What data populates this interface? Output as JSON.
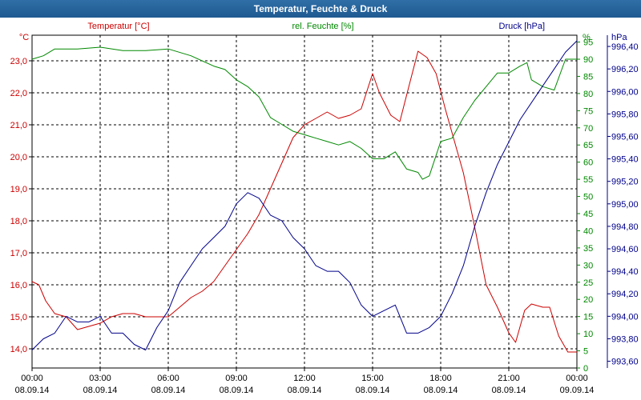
{
  "window": {
    "title": "Temperatur, Feuchte & Druck"
  },
  "chart_data": {
    "type": "line",
    "title": "Temperatur, Feuchte & Druck",
    "grid": true,
    "x": {
      "ticks": [
        {
          "time": "00:00",
          "date": "08.09.14"
        },
        {
          "time": "03:00",
          "date": "08.09.14"
        },
        {
          "time": "06:00",
          "date": "08.09.14"
        },
        {
          "time": "09:00",
          "date": "08.09.14"
        },
        {
          "time": "12:00",
          "date": "08.09.14"
        },
        {
          "time": "15:00",
          "date": "08.09.14"
        },
        {
          "time": "18:00",
          "date": "08.09.14"
        },
        {
          "time": "21:00",
          "date": "08.09.14"
        },
        {
          "time": "00:00",
          "date": "09.09.14"
        }
      ],
      "range_hours": [
        0,
        24
      ]
    },
    "axes": {
      "temperature": {
        "label": "Temperatur [°C]",
        "unit": "°C",
        "color": "#cc0000",
        "range": [
          13.4,
          23.8
        ],
        "ticks": [
          "14,0",
          "15,0",
          "16,0",
          "17,0",
          "18,0",
          "19,0",
          "20,0",
          "21,0",
          "22,0",
          "23,0"
        ]
      },
      "humidity": {
        "label": "rel. Feuchte [%]",
        "unit": "%",
        "color": "#008800",
        "range": [
          0,
          97
        ],
        "ticks": [
          "0",
          "5",
          "10",
          "15",
          "20",
          "25",
          "30",
          "35",
          "40",
          "45",
          "50",
          "55",
          "60",
          "65",
          "70",
          "75",
          "80",
          "85",
          "90",
          "95"
        ]
      },
      "pressure": {
        "label": "Druck [hPa]",
        "unit": "hPa",
        "color": "#00008b",
        "range": [
          993.54,
          996.5
        ],
        "ticks": [
          "993,60",
          "993,80",
          "994,00",
          "994,20",
          "994,40",
          "994,60",
          "994,80",
          "995,00",
          "995,20",
          "995,40",
          "995,60",
          "995,80",
          "996,00",
          "996,20",
          "996,40"
        ]
      }
    },
    "series": [
      {
        "name": "Temperatur [°C]",
        "axis": "temperature",
        "color": "#cc0000",
        "points": [
          [
            0,
            16.1
          ],
          [
            0.3,
            16.0
          ],
          [
            0.6,
            15.5
          ],
          [
            1,
            15.1
          ],
          [
            1.5,
            15.0
          ],
          [
            2,
            14.6
          ],
          [
            2.5,
            14.7
          ],
          [
            3,
            14.8
          ],
          [
            3.5,
            15.0
          ],
          [
            4,
            15.1
          ],
          [
            4.5,
            15.1
          ],
          [
            5,
            15.0
          ],
          [
            5.5,
            15.0
          ],
          [
            6,
            15.0
          ],
          [
            6.5,
            15.3
          ],
          [
            7,
            15.6
          ],
          [
            7.5,
            15.8
          ],
          [
            8,
            16.1
          ],
          [
            8.5,
            16.6
          ],
          [
            9,
            17.1
          ],
          [
            9.5,
            17.6
          ],
          [
            10,
            18.2
          ],
          [
            10.5,
            19.0
          ],
          [
            11,
            19.8
          ],
          [
            11.5,
            20.6
          ],
          [
            12,
            21.0
          ],
          [
            12.5,
            21.2
          ],
          [
            13,
            21.4
          ],
          [
            13.5,
            21.2
          ],
          [
            14,
            21.3
          ],
          [
            14.5,
            21.5
          ],
          [
            15,
            22.6
          ],
          [
            15.3,
            22.0
          ],
          [
            15.8,
            21.3
          ],
          [
            16.2,
            21.1
          ],
          [
            16.6,
            22.2
          ],
          [
            17,
            23.3
          ],
          [
            17.4,
            23.1
          ],
          [
            17.8,
            22.6
          ],
          [
            18.2,
            21.5
          ],
          [
            18.6,
            20.5
          ],
          [
            19,
            19.5
          ],
          [
            19.5,
            17.8
          ],
          [
            20,
            16.0
          ],
          [
            20.5,
            15.3
          ],
          [
            21,
            14.5
          ],
          [
            21.3,
            14.2
          ],
          [
            21.7,
            15.2
          ],
          [
            22,
            15.4
          ],
          [
            22.5,
            15.3
          ],
          [
            22.8,
            15.3
          ],
          [
            23.2,
            14.4
          ],
          [
            23.6,
            13.9
          ],
          [
            24,
            13.9
          ]
        ]
      },
      {
        "name": "rel. Feuchte [%]",
        "axis": "humidity",
        "color": "#008800",
        "points": [
          [
            0,
            90
          ],
          [
            0.5,
            91
          ],
          [
            1,
            93
          ],
          [
            2,
            93
          ],
          [
            3,
            93.5
          ],
          [
            4,
            92.5
          ],
          [
            5,
            92.5
          ],
          [
            6,
            93
          ],
          [
            7,
            91
          ],
          [
            8,
            88
          ],
          [
            8.5,
            87
          ],
          [
            9,
            84
          ],
          [
            9.5,
            82
          ],
          [
            10,
            79
          ],
          [
            10.5,
            73
          ],
          [
            11,
            71
          ],
          [
            11.5,
            69
          ],
          [
            12,
            68
          ],
          [
            12.5,
            67
          ],
          [
            13,
            66
          ],
          [
            13.5,
            65
          ],
          [
            14,
            66
          ],
          [
            14.5,
            64
          ],
          [
            15,
            61
          ],
          [
            15.5,
            61
          ],
          [
            16,
            63
          ],
          [
            16.5,
            58
          ],
          [
            17,
            57
          ],
          [
            17.2,
            55
          ],
          [
            17.5,
            56
          ],
          [
            18,
            66
          ],
          [
            18.5,
            67
          ],
          [
            19,
            73
          ],
          [
            19.5,
            78
          ],
          [
            20,
            82
          ],
          [
            20.5,
            86
          ],
          [
            21,
            86
          ],
          [
            21.5,
            88
          ],
          [
            21.8,
            89
          ],
          [
            22,
            84
          ],
          [
            22.5,
            82
          ],
          [
            23,
            81
          ],
          [
            23.5,
            90
          ],
          [
            24,
            90
          ]
        ]
      },
      {
        "name": "Druck [hPa]",
        "axis": "pressure",
        "color": "#00008b",
        "points": [
          [
            0,
            993.7
          ],
          [
            0.5,
            993.8
          ],
          [
            1,
            993.85
          ],
          [
            1.5,
            994.0
          ],
          [
            2,
            993.95
          ],
          [
            2.5,
            993.95
          ],
          [
            3,
            994.0
          ],
          [
            3.5,
            993.85
          ],
          [
            4,
            993.85
          ],
          [
            4.5,
            993.75
          ],
          [
            5,
            993.7
          ],
          [
            5.5,
            993.9
          ],
          [
            6,
            994.05
          ],
          [
            6.5,
            994.3
          ],
          [
            7,
            994.45
          ],
          [
            7.5,
            994.6
          ],
          [
            8,
            994.7
          ],
          [
            8.5,
            994.8
          ],
          [
            9,
            995.0
          ],
          [
            9.5,
            995.1
          ],
          [
            10,
            995.05
          ],
          [
            10.5,
            994.9
          ],
          [
            11,
            994.85
          ],
          [
            11.5,
            994.7
          ],
          [
            12,
            994.6
          ],
          [
            12.5,
            994.45
          ],
          [
            13,
            994.4
          ],
          [
            13.5,
            994.4
          ],
          [
            14,
            994.3
          ],
          [
            14.5,
            994.1
          ],
          [
            15,
            994.0
          ],
          [
            15.5,
            994.05
          ],
          [
            16,
            994.1
          ],
          [
            16.5,
            993.85
          ],
          [
            17,
            993.85
          ],
          [
            17.5,
            993.9
          ],
          [
            18,
            994.0
          ],
          [
            18.5,
            994.2
          ],
          [
            19,
            994.45
          ],
          [
            19.5,
            994.8
          ],
          [
            20,
            995.1
          ],
          [
            20.5,
            995.35
          ],
          [
            21,
            995.55
          ],
          [
            21.5,
            995.75
          ],
          [
            22,
            995.9
          ],
          [
            22.5,
            996.05
          ],
          [
            23,
            996.2
          ],
          [
            23.5,
            996.35
          ],
          [
            24,
            996.45
          ]
        ]
      }
    ]
  }
}
